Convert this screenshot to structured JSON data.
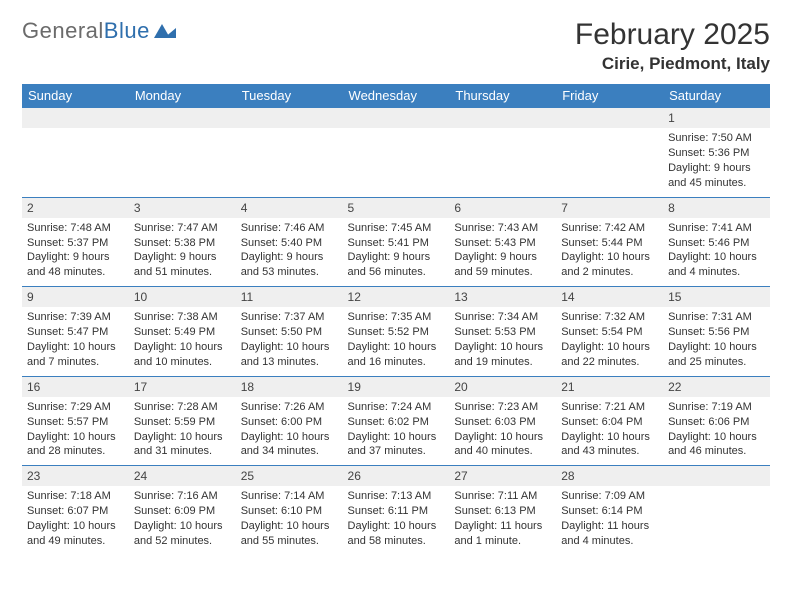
{
  "logo": {
    "text_general": "General",
    "text_blue": "Blue"
  },
  "title": {
    "month": "February 2025",
    "location": "Cirie, Piedmont, Italy"
  },
  "colors": {
    "header_bg": "#3b7fbf",
    "header_text": "#ffffff",
    "daynum_bg": "#efefef",
    "row_border": "#3b7fbf",
    "body_text": "#333333",
    "logo_gray": "#6b6b6b",
    "logo_blue": "#2f6fad",
    "page_bg": "#ffffff"
  },
  "weekdays": [
    "Sunday",
    "Monday",
    "Tuesday",
    "Wednesday",
    "Thursday",
    "Friday",
    "Saturday"
  ],
  "weeks": [
    {
      "nums": [
        "",
        "",
        "",
        "",
        "",
        "",
        "1"
      ],
      "cells": [
        null,
        null,
        null,
        null,
        null,
        null,
        {
          "sunrise": "Sunrise: 7:50 AM",
          "sunset": "Sunset: 5:36 PM",
          "daylight": "Daylight: 9 hours and 45 minutes."
        }
      ]
    },
    {
      "nums": [
        "2",
        "3",
        "4",
        "5",
        "6",
        "7",
        "8"
      ],
      "cells": [
        {
          "sunrise": "Sunrise: 7:48 AM",
          "sunset": "Sunset: 5:37 PM",
          "daylight": "Daylight: 9 hours and 48 minutes."
        },
        {
          "sunrise": "Sunrise: 7:47 AM",
          "sunset": "Sunset: 5:38 PM",
          "daylight": "Daylight: 9 hours and 51 minutes."
        },
        {
          "sunrise": "Sunrise: 7:46 AM",
          "sunset": "Sunset: 5:40 PM",
          "daylight": "Daylight: 9 hours and 53 minutes."
        },
        {
          "sunrise": "Sunrise: 7:45 AM",
          "sunset": "Sunset: 5:41 PM",
          "daylight": "Daylight: 9 hours and 56 minutes."
        },
        {
          "sunrise": "Sunrise: 7:43 AM",
          "sunset": "Sunset: 5:43 PM",
          "daylight": "Daylight: 9 hours and 59 minutes."
        },
        {
          "sunrise": "Sunrise: 7:42 AM",
          "sunset": "Sunset: 5:44 PM",
          "daylight": "Daylight: 10 hours and 2 minutes."
        },
        {
          "sunrise": "Sunrise: 7:41 AM",
          "sunset": "Sunset: 5:46 PM",
          "daylight": "Daylight: 10 hours and 4 minutes."
        }
      ]
    },
    {
      "nums": [
        "9",
        "10",
        "11",
        "12",
        "13",
        "14",
        "15"
      ],
      "cells": [
        {
          "sunrise": "Sunrise: 7:39 AM",
          "sunset": "Sunset: 5:47 PM",
          "daylight": "Daylight: 10 hours and 7 minutes."
        },
        {
          "sunrise": "Sunrise: 7:38 AM",
          "sunset": "Sunset: 5:49 PM",
          "daylight": "Daylight: 10 hours and 10 minutes."
        },
        {
          "sunrise": "Sunrise: 7:37 AM",
          "sunset": "Sunset: 5:50 PM",
          "daylight": "Daylight: 10 hours and 13 minutes."
        },
        {
          "sunrise": "Sunrise: 7:35 AM",
          "sunset": "Sunset: 5:52 PM",
          "daylight": "Daylight: 10 hours and 16 minutes."
        },
        {
          "sunrise": "Sunrise: 7:34 AM",
          "sunset": "Sunset: 5:53 PM",
          "daylight": "Daylight: 10 hours and 19 minutes."
        },
        {
          "sunrise": "Sunrise: 7:32 AM",
          "sunset": "Sunset: 5:54 PM",
          "daylight": "Daylight: 10 hours and 22 minutes."
        },
        {
          "sunrise": "Sunrise: 7:31 AM",
          "sunset": "Sunset: 5:56 PM",
          "daylight": "Daylight: 10 hours and 25 minutes."
        }
      ]
    },
    {
      "nums": [
        "16",
        "17",
        "18",
        "19",
        "20",
        "21",
        "22"
      ],
      "cells": [
        {
          "sunrise": "Sunrise: 7:29 AM",
          "sunset": "Sunset: 5:57 PM",
          "daylight": "Daylight: 10 hours and 28 minutes."
        },
        {
          "sunrise": "Sunrise: 7:28 AM",
          "sunset": "Sunset: 5:59 PM",
          "daylight": "Daylight: 10 hours and 31 minutes."
        },
        {
          "sunrise": "Sunrise: 7:26 AM",
          "sunset": "Sunset: 6:00 PM",
          "daylight": "Daylight: 10 hours and 34 minutes."
        },
        {
          "sunrise": "Sunrise: 7:24 AM",
          "sunset": "Sunset: 6:02 PM",
          "daylight": "Daylight: 10 hours and 37 minutes."
        },
        {
          "sunrise": "Sunrise: 7:23 AM",
          "sunset": "Sunset: 6:03 PM",
          "daylight": "Daylight: 10 hours and 40 minutes."
        },
        {
          "sunrise": "Sunrise: 7:21 AM",
          "sunset": "Sunset: 6:04 PM",
          "daylight": "Daylight: 10 hours and 43 minutes."
        },
        {
          "sunrise": "Sunrise: 7:19 AM",
          "sunset": "Sunset: 6:06 PM",
          "daylight": "Daylight: 10 hours and 46 minutes."
        }
      ]
    },
    {
      "nums": [
        "23",
        "24",
        "25",
        "26",
        "27",
        "28",
        ""
      ],
      "cells": [
        {
          "sunrise": "Sunrise: 7:18 AM",
          "sunset": "Sunset: 6:07 PM",
          "daylight": "Daylight: 10 hours and 49 minutes."
        },
        {
          "sunrise": "Sunrise: 7:16 AM",
          "sunset": "Sunset: 6:09 PM",
          "daylight": "Daylight: 10 hours and 52 minutes."
        },
        {
          "sunrise": "Sunrise: 7:14 AM",
          "sunset": "Sunset: 6:10 PM",
          "daylight": "Daylight: 10 hours and 55 minutes."
        },
        {
          "sunrise": "Sunrise: 7:13 AM",
          "sunset": "Sunset: 6:11 PM",
          "daylight": "Daylight: 10 hours and 58 minutes."
        },
        {
          "sunrise": "Sunrise: 7:11 AM",
          "sunset": "Sunset: 6:13 PM",
          "daylight": "Daylight: 11 hours and 1 minute."
        },
        {
          "sunrise": "Sunrise: 7:09 AM",
          "sunset": "Sunset: 6:14 PM",
          "daylight": "Daylight: 11 hours and 4 minutes."
        },
        null
      ]
    }
  ]
}
